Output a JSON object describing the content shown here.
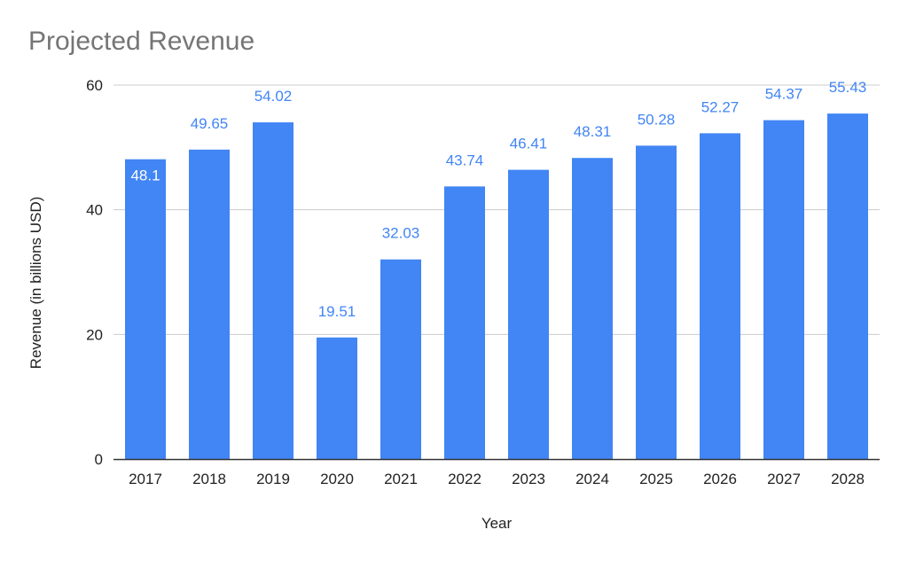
{
  "chart_data": {
    "type": "bar",
    "title": "Projected Revenue",
    "xlabel": "Year",
    "ylabel": "Revenue (in billions USD)",
    "categories": [
      "2017",
      "2018",
      "2019",
      "2020",
      "2021",
      "2022",
      "2023",
      "2024",
      "2025",
      "2026",
      "2027",
      "2028"
    ],
    "values": [
      48.1,
      49.65,
      54.02,
      19.51,
      32.03,
      43.74,
      46.41,
      48.31,
      50.28,
      52.27,
      54.37,
      55.43
    ],
    "value_labels": [
      "48.1",
      "49.65",
      "54.02",
      "19.51",
      "32.03",
      "43.74",
      "46.41",
      "48.31",
      "50.28",
      "52.27",
      "54.37",
      "55.43"
    ],
    "ylim": [
      0,
      60
    ],
    "yticks": [
      "0",
      "20",
      "40",
      "60"
    ],
    "grid": true,
    "legend": "none",
    "colors": {
      "bar": "#4285f4",
      "label": "#4285f4",
      "label_inside": "#ffffff",
      "grid": "#cccccc",
      "axis": "#333333"
    }
  }
}
